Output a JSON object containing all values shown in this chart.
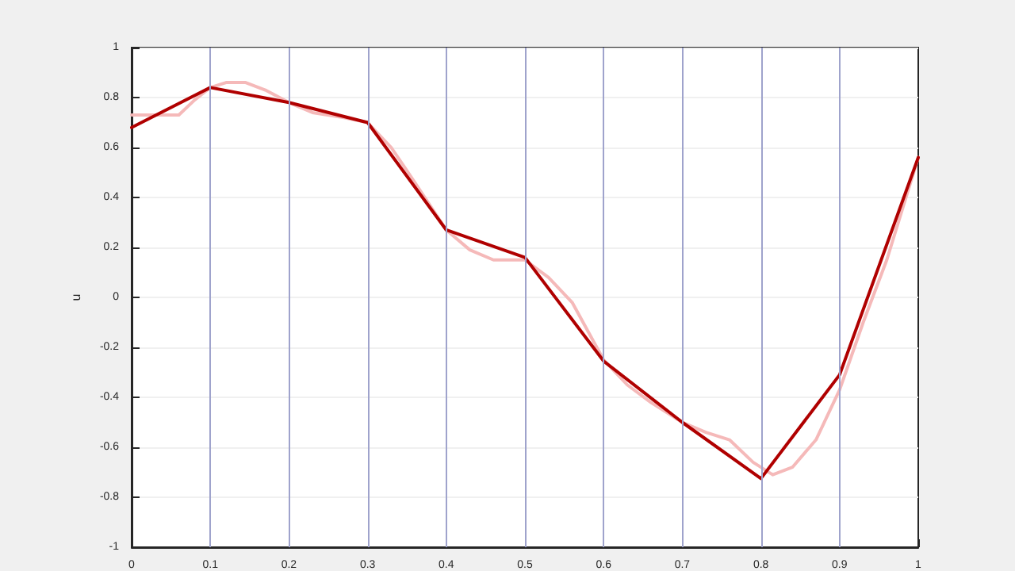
{
  "chart_data": {
    "type": "line",
    "ylabel": "u",
    "xlim": [
      0,
      1
    ],
    "xticks": [
      0,
      0.1,
      0.2,
      0.3,
      0.4,
      0.5,
      0.6,
      0.7,
      0.8,
      0.9,
      1
    ],
    "ylim": [
      -1,
      1
    ],
    "yticks": [
      -1,
      -0.8,
      -0.6,
      -0.4,
      -0.2,
      0,
      0.2,
      0.4,
      0.6,
      0.8,
      1
    ],
    "grid": "y",
    "marker": "none",
    "line_style": "solid",
    "ref_lines": [
      {
        "axis": "x",
        "value": 0.1,
        "color": "#9fa3cc"
      },
      {
        "axis": "x",
        "value": 0.2,
        "color": "#9fa3cc"
      },
      {
        "axis": "x",
        "value": 0.3,
        "color": "#9fa3cc"
      },
      {
        "axis": "x",
        "value": 0.4,
        "color": "#9fa3cc"
      },
      {
        "axis": "x",
        "value": 0.5,
        "color": "#9fa3cc"
      },
      {
        "axis": "x",
        "value": 0.6,
        "color": "#9fa3cc"
      },
      {
        "axis": "x",
        "value": 0.7,
        "color": "#9fa3cc"
      },
      {
        "axis": "x",
        "value": 0.8,
        "color": "#9fa3cc"
      },
      {
        "axis": "x",
        "value": 0.9,
        "color": "#9fa3cc"
      }
    ],
    "series": [
      {
        "color": "#f5b9b9",
        "x": [
          0,
          0.03,
          0.06,
          0.08,
          0.1,
          0.12,
          0.145,
          0.17,
          0.2,
          0.23,
          0.27,
          0.3,
          0.33,
          0.36,
          0.4,
          0.43,
          0.46,
          0.5,
          0.53,
          0.56,
          0.6,
          0.63,
          0.66,
          0.7,
          0.73,
          0.76,
          0.79,
          0.815,
          0.84,
          0.87,
          0.9,
          0.93,
          0.96,
          1
        ],
        "values": [
          0.73,
          0.73,
          0.73,
          0.79,
          0.84,
          0.86,
          0.86,
          0.83,
          0.78,
          0.74,
          0.72,
          0.7,
          0.6,
          0.46,
          0.27,
          0.19,
          0.15,
          0.15,
          0.08,
          -0.02,
          -0.25,
          -0.35,
          -0.42,
          -0.5,
          -0.54,
          -0.57,
          -0.66,
          -0.71,
          -0.68,
          -0.57,
          -0.37,
          -0.1,
          0.15,
          0.56
        ]
      },
      {
        "color": "#b00000",
        "x": [
          0,
          0.1,
          0.2,
          0.3,
          0.4,
          0.5,
          0.6,
          0.7,
          0.8,
          0.9,
          1
        ],
        "values": [
          0.68,
          0.84,
          0.78,
          0.7,
          0.27,
          0.16,
          -0.255,
          -0.5,
          -0.725,
          -0.31,
          0.56
        ]
      }
    ]
  }
}
